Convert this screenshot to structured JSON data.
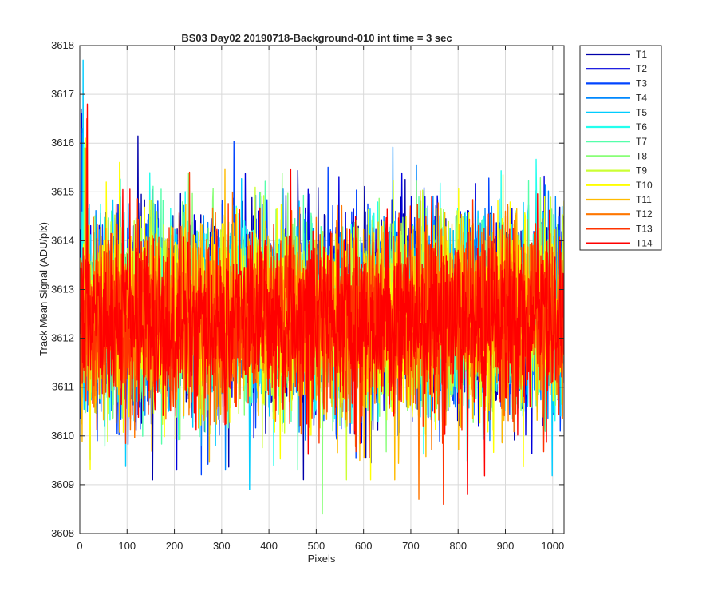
{
  "chart_data": {
    "type": "line",
    "title": "BS03 Day02 20190718-Background-010 int time = 3 sec",
    "xlabel": "Pixels",
    "ylabel": "Track Mean Signal (ADU/pix)",
    "xlim": [
      0,
      1024
    ],
    "ylim": [
      3608,
      3618
    ],
    "xticks": [
      0,
      100,
      200,
      300,
      400,
      500,
      600,
      700,
      800,
      900,
      1000
    ],
    "yticks": [
      3608,
      3609,
      3610,
      3611,
      3612,
      3613,
      3614,
      3615,
      3616,
      3617,
      3618
    ],
    "grid": true,
    "legend_position": "outside top-right",
    "n_points": 1024,
    "series": [
      {
        "name": "T1",
        "color": "#0000AA",
        "mean": 3612.6,
        "std": 1.0,
        "min": 3609.1,
        "max": 3616.7
      },
      {
        "name": "T2",
        "color": "#0000DD",
        "mean": 3612.6,
        "std": 1.0,
        "min": 3609.3,
        "max": 3616.6
      },
      {
        "name": "T3",
        "color": "#0044FF",
        "mean": 3612.5,
        "std": 1.0,
        "min": 3609.2,
        "max": 3616.3
      },
      {
        "name": "T4",
        "color": "#0088FF",
        "mean": 3612.5,
        "std": 0.95,
        "min": 3609.3,
        "max": 3616.2
      },
      {
        "name": "T5",
        "color": "#00CCFF",
        "mean": 3612.5,
        "std": 0.95,
        "min": 3608.9,
        "max": 3617.7
      },
      {
        "name": "T6",
        "color": "#22FFEE",
        "mean": 3612.5,
        "std": 0.95,
        "min": 3609.4,
        "max": 3616.0
      },
      {
        "name": "T7",
        "color": "#55FFAA",
        "mean": 3612.5,
        "std": 0.95,
        "min": 3609.3,
        "max": 3615.9
      },
      {
        "name": "T8",
        "color": "#88FF77",
        "mean": 3612.5,
        "std": 0.95,
        "min": 3608.4,
        "max": 3615.9
      },
      {
        "name": "T9",
        "color": "#CCFF33",
        "mean": 3612.5,
        "std": 0.95,
        "min": 3609.1,
        "max": 3615.9
      },
      {
        "name": "T10",
        "color": "#FFFF00",
        "mean": 3612.5,
        "std": 0.95,
        "min": 3609.1,
        "max": 3616.1
      },
      {
        "name": "T11",
        "color": "#FFBB00",
        "mean": 3612.4,
        "std": 0.95,
        "min": 3609.1,
        "max": 3615.9
      },
      {
        "name": "T12",
        "color": "#FF7700",
        "mean": 3612.4,
        "std": 0.95,
        "min": 3608.7,
        "max": 3615.9
      },
      {
        "name": "T13",
        "color": "#FF3300",
        "mean": 3612.4,
        "std": 0.95,
        "min": 3608.6,
        "max": 3616.5
      },
      {
        "name": "T14",
        "color": "#FF0000",
        "mean": 3612.4,
        "std": 0.9,
        "min": 3608.8,
        "max": 3616.8
      }
    ]
  }
}
